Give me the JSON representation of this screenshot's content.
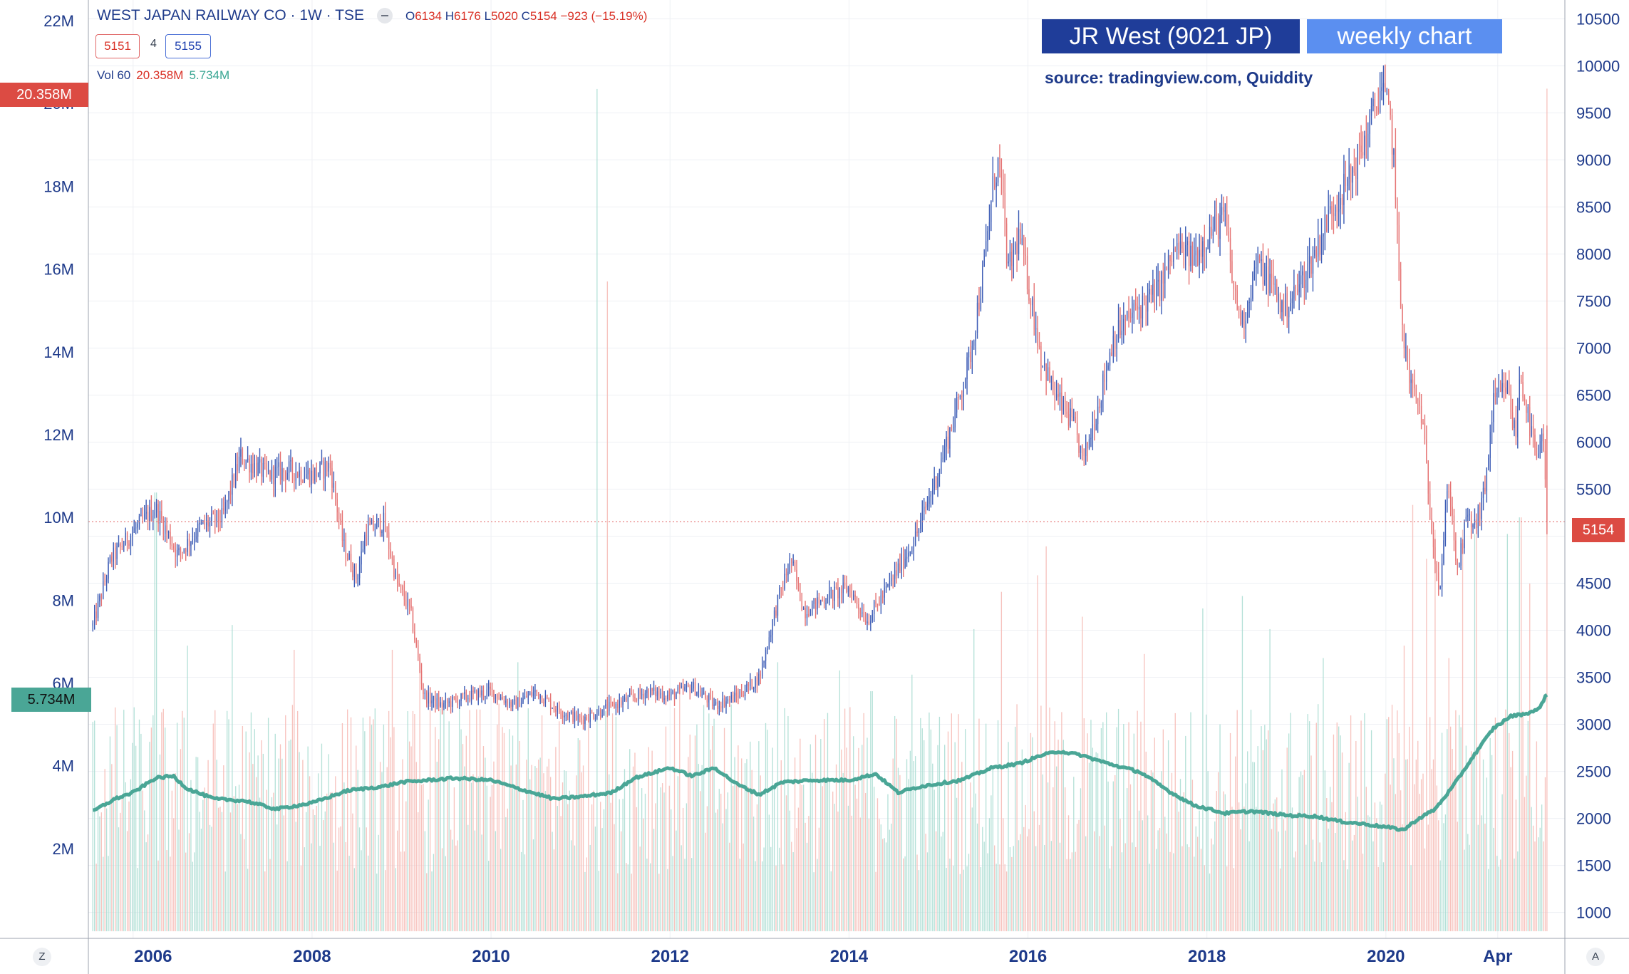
{
  "header": {
    "symbol": "WEST JAPAN RAILWAY CO · 1W · TSE",
    "open_label": "O",
    "open": "6134",
    "high_label": "H",
    "high": "6176",
    "low_label": "L",
    "low": "5020",
    "close_label": "C",
    "close": "5154",
    "change": "−923 (−15.19%)",
    "bid": "5151",
    "spread": "4",
    "ask": "5155",
    "vol_label": "Vol 60",
    "vol_value": "20.358M",
    "vol_ma": "5.734M"
  },
  "badges": {
    "title": "JR West (9021 JP)",
    "subtitle": "weekly chart",
    "source": "source: tradingview.com, Quiddity"
  },
  "tags": {
    "volume_high": "20.358M",
    "volume_ma": "5.734M",
    "last_price": "5154"
  },
  "corners": {
    "left": "Z",
    "right": "A"
  },
  "colors": {
    "up": "#3b5bb5",
    "down": "#e57373",
    "vol_up": "#a8dcd1",
    "vol_down": "#f6b8b3",
    "ma": "#4aa696",
    "price_line": "#e57373"
  },
  "chart_data": {
    "type": "candlestick",
    "interval": "weekly",
    "price_axis": {
      "side": "right",
      "ticks": [
        1000,
        1500,
        2000,
        2500,
        3000,
        3500,
        4000,
        4500,
        5000,
        5500,
        6000,
        6500,
        7000,
        7500,
        8000,
        8500,
        9000,
        9500,
        10000,
        10500
      ],
      "range": [
        800,
        10700
      ]
    },
    "volume_axis": {
      "side": "left",
      "ticks": [
        "2M",
        "4M",
        "6M",
        "8M",
        "10M",
        "12M",
        "14M",
        "16M",
        "18M",
        "20M",
        "22M"
      ],
      "tick_values": [
        2,
        4,
        6,
        8,
        10,
        12,
        14,
        16,
        18,
        20,
        22
      ],
      "range": [
        0,
        22.5
      ],
      "unit": "M"
    },
    "x_axis": {
      "labels": [
        "2006",
        "2008",
        "2010",
        "2012",
        "2014",
        "2016",
        "2018",
        "2020",
        "Apr"
      ],
      "label_positions": [
        2006.0,
        2008.0,
        2010.0,
        2012.0,
        2014.0,
        2016.0,
        2018.0,
        2020.0,
        2021.25
      ],
      "range": [
        2005.5,
        2022.0
      ]
    },
    "last_price": 5154,
    "price_path": [
      [
        2005.55,
        4050
      ],
      [
        2005.75,
        4750
      ],
      [
        2006.0,
        5050
      ],
      [
        2006.25,
        5300
      ],
      [
        2006.5,
        4800
      ],
      [
        2006.75,
        5100
      ],
      [
        2007.0,
        5200
      ],
      [
        2007.2,
        5850
      ],
      [
        2007.5,
        5650
      ],
      [
        2007.75,
        5700
      ],
      [
        2008.0,
        5650
      ],
      [
        2008.2,
        5750
      ],
      [
        2008.35,
        4900
      ],
      [
        2008.5,
        4550
      ],
      [
        2008.6,
        5050
      ],
      [
        2008.8,
        5150
      ],
      [
        2008.95,
        4500
      ],
      [
        2009.1,
        4200
      ],
      [
        2009.25,
        3300
      ],
      [
        2009.45,
        3200
      ],
      [
        2009.75,
        3300
      ],
      [
        2010.0,
        3350
      ],
      [
        2010.25,
        3200
      ],
      [
        2010.5,
        3350
      ],
      [
        2010.75,
        3150
      ],
      [
        2011.0,
        3050
      ],
      [
        2011.25,
        3150
      ],
      [
        2011.5,
        3250
      ],
      [
        2011.75,
        3350
      ],
      [
        2012.0,
        3300
      ],
      [
        2012.25,
        3400
      ],
      [
        2012.5,
        3200
      ],
      [
        2012.75,
        3300
      ],
      [
        2013.0,
        3500
      ],
      [
        2013.2,
        4300
      ],
      [
        2013.35,
        4750
      ],
      [
        2013.5,
        4200
      ],
      [
        2013.75,
        4350
      ],
      [
        2014.0,
        4450
      ],
      [
        2014.2,
        4100
      ],
      [
        2014.4,
        4400
      ],
      [
        2014.55,
        4650
      ],
      [
        2014.75,
        5000
      ],
      [
        2015.0,
        5700
      ],
      [
        2015.2,
        6350
      ],
      [
        2015.35,
        6900
      ],
      [
        2015.5,
        7800
      ],
      [
        2015.62,
        8800
      ],
      [
        2015.68,
        9000
      ],
      [
        2015.78,
        7800
      ],
      [
        2015.9,
        8200
      ],
      [
        2016.0,
        7700
      ],
      [
        2016.15,
        6900
      ],
      [
        2016.3,
        6500
      ],
      [
        2016.5,
        6200
      ],
      [
        2016.62,
        5800
      ],
      [
        2016.8,
        6450
      ],
      [
        2016.95,
        7100
      ],
      [
        2017.2,
        7400
      ],
      [
        2017.45,
        7600
      ],
      [
        2017.65,
        8050
      ],
      [
        2017.85,
        7950
      ],
      [
        2018.0,
        8200
      ],
      [
        2018.2,
        8400
      ],
      [
        2018.3,
        7600
      ],
      [
        2018.4,
        7250
      ],
      [
        2018.55,
        7900
      ],
      [
        2018.75,
        7650
      ],
      [
        2018.85,
        7400
      ],
      [
        2019.0,
        7600
      ],
      [
        2019.2,
        8000
      ],
      [
        2019.4,
        8500
      ],
      [
        2019.6,
        8800
      ],
      [
        2019.8,
        9300
      ],
      [
        2019.95,
        9800
      ],
      [
        2020.05,
        9400
      ],
      [
        2020.1,
        8900
      ],
      [
        2020.15,
        7600
      ],
      [
        2020.25,
        6700
      ],
      [
        2020.4,
        6300
      ],
      [
        2020.5,
        5200
      ],
      [
        2020.6,
        4400
      ],
      [
        2020.7,
        5600
      ],
      [
        2020.8,
        4600
      ],
      [
        2020.9,
        5200
      ],
      [
        2021.0,
        5100
      ],
      [
        2021.1,
        5450
      ],
      [
        2021.2,
        6400
      ],
      [
        2021.35,
        6600
      ],
      [
        2021.45,
        6050
      ],
      [
        2021.5,
        6750
      ],
      [
        2021.6,
        6200
      ],
      [
        2021.7,
        5750
      ],
      [
        2021.75,
        6150
      ],
      [
        2021.8,
        5154
      ]
    ],
    "volume_ma_path": [
      [
        2005.55,
        2.9
      ],
      [
        2005.8,
        3.2
      ],
      [
        2006.0,
        3.35
      ],
      [
        2006.25,
        3.7
      ],
      [
        2006.45,
        3.75
      ],
      [
        2006.6,
        3.45
      ],
      [
        2006.9,
        3.2
      ],
      [
        2007.25,
        3.15
      ],
      [
        2007.6,
        2.95
      ],
      [
        2008.0,
        3.1
      ],
      [
        2008.4,
        3.4
      ],
      [
        2008.8,
        3.5
      ],
      [
        2009.0,
        3.6
      ],
      [
        2009.3,
        3.65
      ],
      [
        2009.6,
        3.7
      ],
      [
        2010.0,
        3.65
      ],
      [
        2010.3,
        3.45
      ],
      [
        2010.7,
        3.2
      ],
      [
        2011.0,
        3.25
      ],
      [
        2011.35,
        3.35
      ],
      [
        2011.6,
        3.7
      ],
      [
        2012.0,
        3.95
      ],
      [
        2012.25,
        3.75
      ],
      [
        2012.5,
        3.95
      ],
      [
        2012.75,
        3.55
      ],
      [
        2013.0,
        3.3
      ],
      [
        2013.25,
        3.6
      ],
      [
        2013.6,
        3.65
      ],
      [
        2014.0,
        3.65
      ],
      [
        2014.3,
        3.8
      ],
      [
        2014.55,
        3.35
      ],
      [
        2014.8,
        3.5
      ],
      [
        2015.25,
        3.65
      ],
      [
        2015.6,
        3.95
      ],
      [
        2015.9,
        4.05
      ],
      [
        2016.15,
        4.25
      ],
      [
        2016.35,
        4.35
      ],
      [
        2016.6,
        4.25
      ],
      [
        2016.9,
        4.05
      ],
      [
        2017.25,
        3.85
      ],
      [
        2017.6,
        3.35
      ],
      [
        2017.85,
        3.05
      ],
      [
        2018.2,
        2.85
      ],
      [
        2018.5,
        2.9
      ],
      [
        2018.9,
        2.8
      ],
      [
        2019.2,
        2.78
      ],
      [
        2019.5,
        2.65
      ],
      [
        2019.8,
        2.58
      ],
      [
        2020.05,
        2.5
      ],
      [
        2020.2,
        2.45
      ],
      [
        2020.35,
        2.7
      ],
      [
        2020.55,
        2.95
      ],
      [
        2020.75,
        3.5
      ],
      [
        2021.0,
        4.3
      ],
      [
        2021.2,
        4.9
      ],
      [
        2021.4,
        5.2
      ],
      [
        2021.55,
        5.25
      ],
      [
        2021.7,
        5.35
      ],
      [
        2021.8,
        5.734
      ]
    ],
    "volume_typical": 5.5,
    "volume_spikes": [
      [
        2006.25,
        10.6
      ],
      [
        2006.6,
        6.9
      ],
      [
        2007.1,
        7.4
      ],
      [
        2007.8,
        6.8
      ],
      [
        2008.9,
        6.8
      ],
      [
        2009.2,
        6.3
      ],
      [
        2010.3,
        6.5
      ],
      [
        2011.18,
        20.35
      ],
      [
        2011.3,
        15.7
      ],
      [
        2012.1,
        6.0
      ],
      [
        2013.2,
        6.5
      ],
      [
        2013.9,
        6.3
      ],
      [
        2014.25,
        5.8
      ],
      [
        2014.7,
        6.2
      ],
      [
        2015.4,
        7.3
      ],
      [
        2015.7,
        8.2
      ],
      [
        2016.1,
        8.6
      ],
      [
        2016.2,
        9.3
      ],
      [
        2016.6,
        7.6
      ],
      [
        2017.3,
        6.7
      ],
      [
        2017.95,
        7.8
      ],
      [
        2018.4,
        8.1
      ],
      [
        2018.7,
        7.3
      ],
      [
        2019.3,
        6.6
      ],
      [
        2020.2,
        6.9
      ],
      [
        2020.3,
        10.3
      ],
      [
        2020.45,
        9.0
      ],
      [
        2020.55,
        9.7
      ],
      [
        2020.7,
        6.6
      ],
      [
        2020.85,
        9.7
      ],
      [
        2021.0,
        9.6
      ],
      [
        2021.35,
        9.6
      ],
      [
        2021.5,
        10.0
      ],
      [
        2021.6,
        8.4
      ],
      [
        2021.82,
        20.358
      ]
    ]
  }
}
